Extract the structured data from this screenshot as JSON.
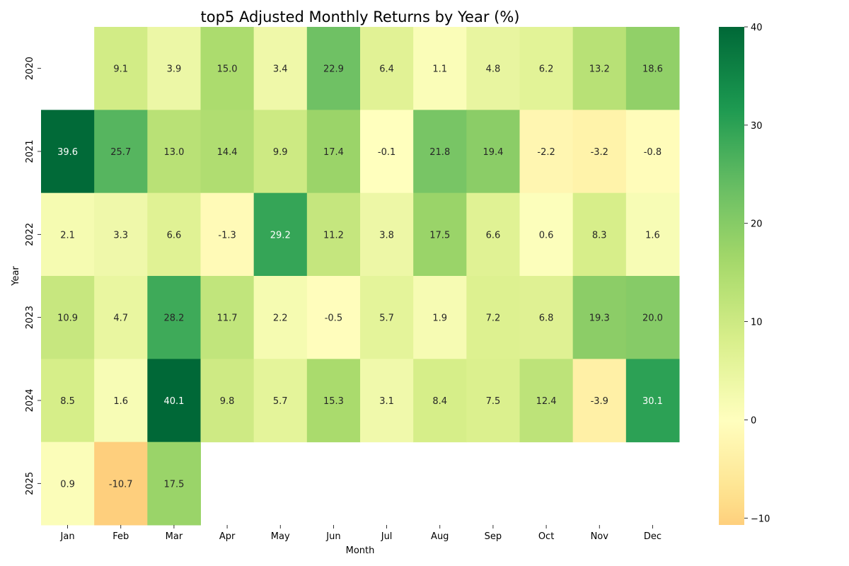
{
  "chart_data": {
    "type": "heatmap",
    "title": "top5 Adjusted Monthly Returns by Year (%)",
    "xlabel": "Month",
    "ylabel": "Year",
    "x_categories": [
      "Jan",
      "Feb",
      "Mar",
      "Apr",
      "May",
      "Jun",
      "Jul",
      "Aug",
      "Sep",
      "Oct",
      "Nov",
      "Dec"
    ],
    "y_categories": [
      "2020",
      "2021",
      "2022",
      "2023",
      "2024",
      "2025"
    ],
    "values": [
      [
        null,
        9.1,
        3.9,
        15.0,
        3.4,
        22.9,
        6.4,
        1.1,
        4.8,
        6.2,
        13.2,
        18.6
      ],
      [
        39.6,
        25.7,
        13.0,
        14.4,
        9.9,
        17.4,
        -0.1,
        21.8,
        19.4,
        -2.2,
        -3.2,
        -0.8
      ],
      [
        2.1,
        3.3,
        6.6,
        -1.3,
        29.2,
        11.2,
        3.8,
        17.5,
        6.6,
        0.6,
        8.3,
        1.6
      ],
      [
        10.9,
        4.7,
        28.2,
        11.7,
        2.2,
        -0.5,
        5.7,
        1.9,
        7.2,
        6.8,
        19.3,
        20.0
      ],
      [
        8.5,
        1.6,
        40.1,
        9.8,
        5.7,
        15.3,
        3.1,
        8.4,
        7.5,
        12.4,
        -3.9,
        30.1
      ],
      [
        0.9,
        -10.7,
        17.5,
        null,
        null,
        null,
        null,
        null,
        null,
        null,
        null,
        null
      ]
    ],
    "value_format": "%.1f",
    "colormap": "RdYlGn",
    "color_center": 0,
    "colorbar": {
      "min": -10.7,
      "max": 40,
      "ticks": [
        -10,
        0,
        10,
        20,
        30,
        40
      ],
      "tick_labels": [
        "−10",
        "0",
        "10",
        "20",
        "30",
        "40"
      ]
    }
  }
}
